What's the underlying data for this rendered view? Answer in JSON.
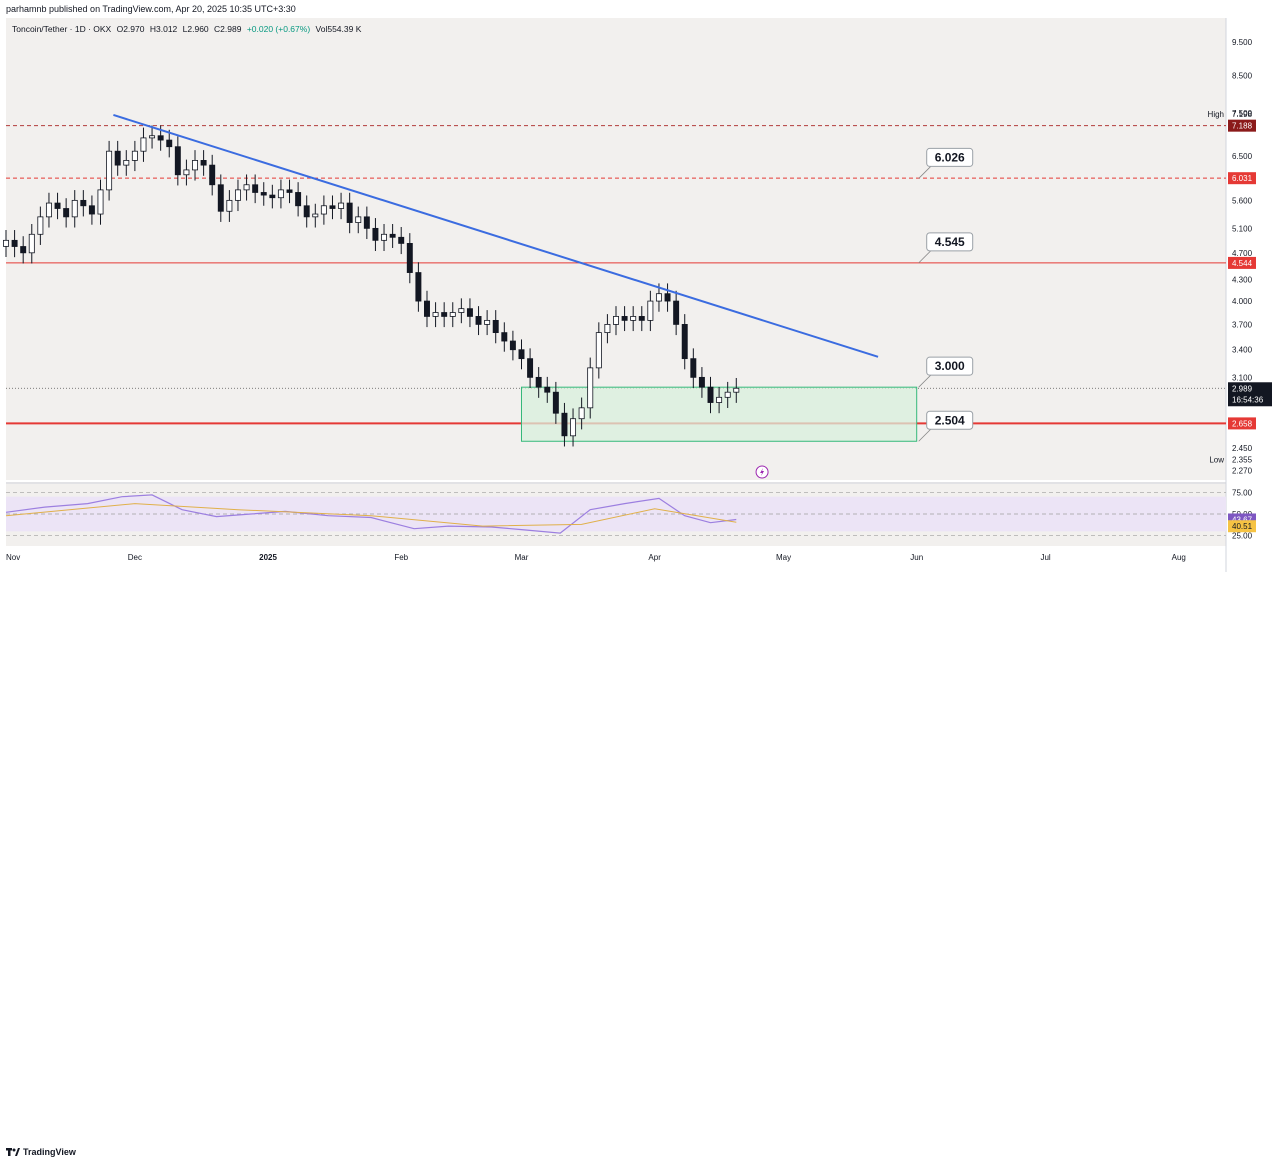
{
  "publisher_line": "parhamnb published on TradingView.com, Apr 20, 2025 10:35 UTC+3:30",
  "legend": {
    "symbol": "Toncoin/Tether · 1D · OKX",
    "open": "O2.970",
    "high": "H3.012",
    "low": "L2.960",
    "close": "C2.989",
    "change": "+0.020 (+0.67%)",
    "volume": "Vol554.39 K"
  },
  "footer_brand": "TradingView",
  "colors": {
    "background": "#f2f0ee",
    "up": "#ffffff",
    "down": "#131722",
    "trendline": "#3b6ce0",
    "support": "#e53935",
    "zone_fill": "#d8f0dc",
    "zone_border": "#35b87a",
    "rsi_line": "#9c7fe0",
    "rsi_ma": "#e0b04a",
    "rsi_band": "#ece4f6"
  },
  "price_axis": {
    "ticks": [
      "9.500",
      "8.500",
      "7.500",
      "6.500",
      "5.600",
      "5.100",
      "4.700",
      "4.300",
      "4.000",
      "3.700",
      "3.400",
      "3.100",
      "2.450",
      "2.270"
    ],
    "high_label": "High",
    "high_value": "7.198",
    "low_label": "Low",
    "low_value": "2.355",
    "badges": [
      {
        "text": "7.188",
        "color": "#8b1a1a",
        "price": 7.188
      },
      {
        "text": "6.031",
        "color": "#e53935",
        "price": 6.031
      },
      {
        "text": "4.544",
        "color": "#e53935",
        "price": 4.544
      },
      {
        "text": "2.658",
        "color": "#e53935",
        "price": 2.658
      }
    ],
    "current_price": "2.989",
    "countdown": "16:54:36"
  },
  "rsi_axis": {
    "ticks": [
      "75.00",
      "50.00",
      "25.00"
    ],
    "rsi_value": "43.67",
    "rsi_ma_value": "40.51"
  },
  "time_axis": [
    "Nov",
    "Dec",
    "2025",
    "Feb",
    "Mar",
    "Apr",
    "May",
    "Jun",
    "Jul",
    "Aug"
  ],
  "annotations": [
    "6.026",
    "4.545",
    "3.000",
    "2.504"
  ],
  "chart_data": {
    "type": "candlestick",
    "title": "Toncoin/Tether · 1D · OKX",
    "scale": "log",
    "ylim": [
      2.2,
      10.3
    ],
    "x_range": [
      "2024-11-01",
      "2025-08-12"
    ],
    "ohlc": {
      "open": 2.97,
      "high": 3.012,
      "low": 2.96,
      "close": 2.989
    },
    "period_high": 7.198,
    "period_low": 2.355,
    "horizontal_levels": [
      7.188,
      6.031,
      4.544,
      2.658
    ],
    "resistance_trendline": [
      {
        "date": "2024-11-26",
        "price": 7.45
      },
      {
        "date": "2025-05-23",
        "price": 3.32
      }
    ],
    "support_zone": {
      "from": "2025-03-01",
      "to": "2025-06-01",
      "top": 3.0,
      "bottom": 2.504
    },
    "price_labels": [
      {
        "date": "2025-06-01",
        "price": 6.026,
        "text": "6.026"
      },
      {
        "date": "2025-06-01",
        "price": 4.545,
        "text": "4.545"
      },
      {
        "date": "2025-06-01",
        "price": 3.0,
        "text": "3.000"
      },
      {
        "date": "2025-06-01",
        "price": 2.504,
        "text": "2.504"
      }
    ],
    "closes": [
      {
        "date": "2024-11-01",
        "close": 4.9
      },
      {
        "date": "2024-11-03",
        "close": 4.8
      },
      {
        "date": "2024-11-05",
        "close": 4.7
      },
      {
        "date": "2024-11-07",
        "close": 5.0
      },
      {
        "date": "2024-11-09",
        "close": 5.3
      },
      {
        "date": "2024-11-11",
        "close": 5.55
      },
      {
        "date": "2024-11-13",
        "close": 5.45
      },
      {
        "date": "2024-11-15",
        "close": 5.3
      },
      {
        "date": "2024-11-17",
        "close": 5.6
      },
      {
        "date": "2024-11-19",
        "close": 5.5
      },
      {
        "date": "2024-11-21",
        "close": 5.35
      },
      {
        "date": "2024-11-23",
        "close": 5.8
      },
      {
        "date": "2024-11-25",
        "close": 6.6
      },
      {
        "date": "2024-11-27",
        "close": 6.3
      },
      {
        "date": "2024-11-29",
        "close": 6.4
      },
      {
        "date": "2024-12-01",
        "close": 6.6
      },
      {
        "date": "2024-12-03",
        "close": 6.9
      },
      {
        "date": "2024-12-05",
        "close": 6.95
      },
      {
        "date": "2024-12-07",
        "close": 6.85
      },
      {
        "date": "2024-12-09",
        "close": 6.7
      },
      {
        "date": "2024-12-11",
        "close": 6.1
      },
      {
        "date": "2024-12-13",
        "close": 6.2
      },
      {
        "date": "2024-12-15",
        "close": 6.4
      },
      {
        "date": "2024-12-17",
        "close": 6.3
      },
      {
        "date": "2024-12-19",
        "close": 5.9
      },
      {
        "date": "2024-12-21",
        "close": 5.4
      },
      {
        "date": "2024-12-23",
        "close": 5.6
      },
      {
        "date": "2024-12-25",
        "close": 5.8
      },
      {
        "date": "2024-12-27",
        "close": 5.9
      },
      {
        "date": "2024-12-29",
        "close": 5.75
      },
      {
        "date": "2024-12-31",
        "close": 5.7
      },
      {
        "date": "2025-01-02",
        "close": 5.65
      },
      {
        "date": "2025-01-04",
        "close": 5.8
      },
      {
        "date": "2025-01-06",
        "close": 5.75
      },
      {
        "date": "2025-01-08",
        "close": 5.5
      },
      {
        "date": "2025-01-10",
        "close": 5.3
      },
      {
        "date": "2025-01-12",
        "close": 5.35
      },
      {
        "date": "2025-01-14",
        "close": 5.5
      },
      {
        "date": "2025-01-16",
        "close": 5.45
      },
      {
        "date": "2025-01-18",
        "close": 5.55
      },
      {
        "date": "2025-01-20",
        "close": 5.2
      },
      {
        "date": "2025-01-22",
        "close": 5.3
      },
      {
        "date": "2025-01-24",
        "close": 5.1
      },
      {
        "date": "2025-01-26",
        "close": 4.9
      },
      {
        "date": "2025-01-28",
        "close": 5.0
      },
      {
        "date": "2025-01-30",
        "close": 4.95
      },
      {
        "date": "2025-02-01",
        "close": 4.85
      },
      {
        "date": "2025-02-03",
        "close": 4.4
      },
      {
        "date": "2025-02-05",
        "close": 4.0
      },
      {
        "date": "2025-02-07",
        "close": 3.8
      },
      {
        "date": "2025-02-09",
        "close": 3.85
      },
      {
        "date": "2025-02-11",
        "close": 3.8
      },
      {
        "date": "2025-02-13",
        "close": 3.85
      },
      {
        "date": "2025-02-15",
        "close": 3.9
      },
      {
        "date": "2025-02-17",
        "close": 3.8
      },
      {
        "date": "2025-02-19",
        "close": 3.7
      },
      {
        "date": "2025-02-21",
        "close": 3.75
      },
      {
        "date": "2025-02-23",
        "close": 3.6
      },
      {
        "date": "2025-02-25",
        "close": 3.5
      },
      {
        "date": "2025-02-27",
        "close": 3.4
      },
      {
        "date": "2025-03-01",
        "close": 3.3
      },
      {
        "date": "2025-03-03",
        "close": 3.1
      },
      {
        "date": "2025-03-05",
        "close": 3.0
      },
      {
        "date": "2025-03-07",
        "close": 2.95
      },
      {
        "date": "2025-03-09",
        "close": 2.75
      },
      {
        "date": "2025-03-11",
        "close": 2.55
      },
      {
        "date": "2025-03-13",
        "close": 2.7
      },
      {
        "date": "2025-03-15",
        "close": 2.8
      },
      {
        "date": "2025-03-17",
        "close": 3.2
      },
      {
        "date": "2025-03-19",
        "close": 3.6
      },
      {
        "date": "2025-03-21",
        "close": 3.7
      },
      {
        "date": "2025-03-23",
        "close": 3.8
      },
      {
        "date": "2025-03-25",
        "close": 3.75
      },
      {
        "date": "2025-03-27",
        "close": 3.8
      },
      {
        "date": "2025-03-29",
        "close": 3.75
      },
      {
        "date": "2025-03-31",
        "close": 4.0
      },
      {
        "date": "2025-04-02",
        "close": 4.1
      },
      {
        "date": "2025-04-04",
        "close": 4.0
      },
      {
        "date": "2025-04-06",
        "close": 3.7
      },
      {
        "date": "2025-04-08",
        "close": 3.3
      },
      {
        "date": "2025-04-10",
        "close": 3.1
      },
      {
        "date": "2025-04-12",
        "close": 3.0
      },
      {
        "date": "2025-04-14",
        "close": 2.85
      },
      {
        "date": "2025-04-16",
        "close": 2.9
      },
      {
        "date": "2025-04-18",
        "close": 2.95
      },
      {
        "date": "2025-04-20",
        "close": 2.989
      }
    ],
    "rsi": {
      "name": "RSI",
      "ylim": [
        20,
        80
      ],
      "current": 43.67,
      "ma_current": 40.51,
      "values": [
        {
          "date": "2024-11-01",
          "rsi": 52
        },
        {
          "date": "2024-11-10",
          "rsi": 58
        },
        {
          "date": "2024-11-20",
          "rsi": 62
        },
        {
          "date": "2024-11-28",
          "rsi": 70
        },
        {
          "date": "2024-12-05",
          "rsi": 72
        },
        {
          "date": "2024-12-12",
          "rsi": 55
        },
        {
          "date": "2024-12-20",
          "rsi": 47
        },
        {
          "date": "2024-12-28",
          "rsi": 50
        },
        {
          "date": "2025-01-05",
          "rsi": 53
        },
        {
          "date": "2025-01-15",
          "rsi": 48
        },
        {
          "date": "2025-01-25",
          "rsi": 46
        },
        {
          "date": "2025-02-04",
          "rsi": 33
        },
        {
          "date": "2025-02-12",
          "rsi": 36
        },
        {
          "date": "2025-02-22",
          "rsi": 35
        },
        {
          "date": "2025-03-01",
          "rsi": 32
        },
        {
          "date": "2025-03-10",
          "rsi": 28
        },
        {
          "date": "2025-03-17",
          "rsi": 55
        },
        {
          "date": "2025-03-25",
          "rsi": 62
        },
        {
          "date": "2025-04-02",
          "rsi": 68
        },
        {
          "date": "2025-04-08",
          "rsi": 48
        },
        {
          "date": "2025-04-14",
          "rsi": 40
        },
        {
          "date": "2025-04-20",
          "rsi": 43.67
        }
      ],
      "ma": [
        {
          "date": "2024-11-01",
          "rsi": 48
        },
        {
          "date": "2024-12-01",
          "rsi": 62
        },
        {
          "date": "2024-12-25",
          "rsi": 55
        },
        {
          "date": "2025-01-25",
          "rsi": 48
        },
        {
          "date": "2025-02-20",
          "rsi": 36
        },
        {
          "date": "2025-03-15",
          "rsi": 38
        },
        {
          "date": "2025-04-01",
          "rsi": 56
        },
        {
          "date": "2025-04-20",
          "rsi": 40.51
        }
      ]
    }
  }
}
